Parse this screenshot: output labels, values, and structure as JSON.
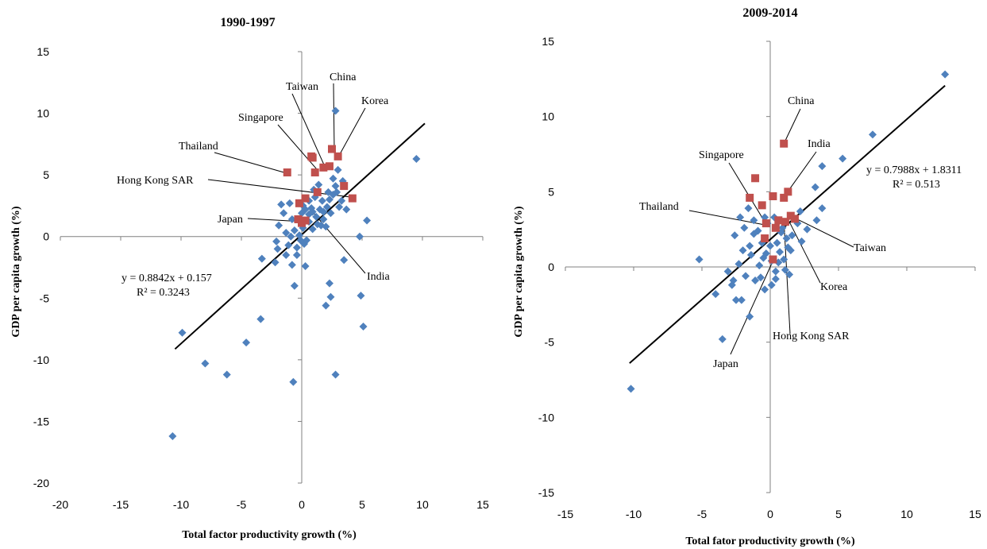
{
  "colors": {
    "background": "#ffffff",
    "other_markers": "#4f81bd",
    "asia_markers": "#c0504d",
    "axis": "#808080",
    "trendline": "#000000"
  },
  "chart_data": [
    {
      "type": "scatter",
      "title": "1990-1997",
      "xlabel": "Total factor productivity growth (%)",
      "ylabel": "GDP per capita growth (%)",
      "xlim": [
        -20,
        15
      ],
      "ylim": [
        -20,
        15
      ],
      "xticks": [
        -20,
        -15,
        -10,
        -5,
        0,
        5,
        10,
        15
      ],
      "yticks": [
        -20,
        -15,
        -10,
        -5,
        0,
        5,
        10,
        15
      ],
      "x_tick_labels": [
        "-20",
        "-15",
        "-10",
        "-5",
        "0",
        "5",
        "10",
        "15"
      ],
      "y_tick_labels": [
        "-20",
        "-15",
        "-10",
        "-5",
        "0",
        "5",
        "10",
        "15"
      ],
      "trendline": {
        "slope": 0.8842,
        "intercept": 0.157,
        "x_range": [
          -10.5,
          10.2
        ]
      },
      "equation_text": "y = 0.8842x + 0.157",
      "r2_text": "R² = 0.3243",
      "series": [
        {
          "marker": "diamond",
          "color": "#4f81bd",
          "points": [
            [
              9.5,
              6.3
            ],
            [
              2.8,
              10.2
            ],
            [
              5.4,
              1.3
            ],
            [
              4.8,
              0.0
            ],
            [
              3.5,
              -1.9
            ],
            [
              2.3,
              -3.8
            ],
            [
              2.4,
              -4.9
            ],
            [
              4.9,
              -4.8
            ],
            [
              5.1,
              -7.3
            ],
            [
              2.0,
              -5.6
            ],
            [
              2.8,
              -11.2
            ],
            [
              -0.7,
              -11.8
            ],
            [
              -4.6,
              -8.6
            ],
            [
              -3.4,
              -6.7
            ],
            [
              -6.2,
              -11.2
            ],
            [
              -8.0,
              -10.3
            ],
            [
              -9.9,
              -7.8
            ],
            [
              -10.7,
              -16.2
            ],
            [
              -3.3,
              -1.8
            ],
            [
              -2.2,
              -2.1
            ],
            [
              -2.0,
              -1.0
            ],
            [
              -2.1,
              -0.4
            ],
            [
              -1.3,
              -1.5
            ],
            [
              -0.8,
              -2.3
            ],
            [
              -0.6,
              -4.0
            ],
            [
              0.3,
              -2.4
            ],
            [
              -0.4,
              -1.5
            ],
            [
              -0.9,
              0.0
            ],
            [
              -1.7,
              2.6
            ],
            [
              -1.9,
              0.9
            ],
            [
              -1.3,
              0.3
            ],
            [
              -0.6,
              0.5
            ],
            [
              -1.0,
              2.7
            ],
            [
              0.1,
              2.5
            ],
            [
              0.3,
              2.2
            ],
            [
              0.6,
              1.8
            ],
            [
              0.9,
              2.0
            ],
            [
              1.2,
              1.6
            ],
            [
              1.5,
              2.2
            ],
            [
              1.8,
              2.0
            ],
            [
              2.1,
              2.4
            ],
            [
              2.3,
              3.0
            ],
            [
              2.6,
              3.4
            ],
            [
              2.9,
              3.6
            ],
            [
              3.1,
              2.4
            ],
            [
              3.3,
              2.9
            ],
            [
              3.7,
              2.2
            ],
            [
              0.6,
              1.2
            ],
            [
              0.9,
              0.6
            ],
            [
              1.3,
              1.0
            ],
            [
              1.6,
              0.9
            ],
            [
              2.0,
              0.8
            ],
            [
              -0.2,
              0.1
            ],
            [
              0.2,
              -0.6
            ],
            [
              0.4,
              -0.3
            ],
            [
              -0.4,
              -0.9
            ],
            [
              1.0,
              3.8
            ],
            [
              1.4,
              4.2
            ],
            [
              2.6,
              4.7
            ],
            [
              3.0,
              5.4
            ],
            [
              3.4,
              4.5
            ],
            [
              0.0,
              1.9
            ],
            [
              0.6,
              2.9
            ],
            [
              1.1,
              3.2
            ],
            [
              -0.2,
              1.4
            ],
            [
              0.8,
              2.3
            ],
            [
              1.7,
              2.9
            ],
            [
              2.2,
              3.6
            ],
            [
              2.8,
              4.1
            ],
            [
              -1.5,
              1.9
            ],
            [
              -0.8,
              1.4
            ],
            [
              0.1,
              0.7
            ],
            [
              1.8,
              1.4
            ],
            [
              2.4,
              1.9
            ],
            [
              -0.1,
              -0.3
            ],
            [
              -1.1,
              -0.7
            ]
          ]
        },
        {
          "marker": "square",
          "color": "#c0504d",
          "points": [
            [
              -1.2,
              5.2
            ],
            [
              0.9,
              6.4
            ],
            [
              1.1,
              5.2
            ],
            [
              1.8,
              5.6
            ],
            [
              2.3,
              5.7
            ],
            [
              2.5,
              7.1
            ],
            [
              3.0,
              6.5
            ],
            [
              3.5,
              4.1
            ],
            [
              4.2,
              3.1
            ],
            [
              1.3,
              3.6
            ],
            [
              0.3,
              3.1
            ],
            [
              -0.2,
              2.7
            ],
            [
              -0.3,
              1.4
            ],
            [
              0.0,
              1.1
            ],
            [
              0.3,
              1.3
            ],
            [
              0.8,
              6.5
            ]
          ]
        }
      ],
      "annotations": [
        {
          "text": "China",
          "x": 2.7,
          "y": 6.8
        },
        {
          "text": "Taiwan",
          "x": 1.9,
          "y": 5.7
        },
        {
          "text": "Korea",
          "x": 3.0,
          "y": 6.4
        },
        {
          "text": "Singapore",
          "x": 1.3,
          "y": 5.4
        },
        {
          "text": "Thailand",
          "x": -1.1,
          "y": 5.1
        },
        {
          "text": "Hong Kong SAR",
          "x": 4.1,
          "y": 3.2
        },
        {
          "text": "Japan",
          "x": 0.3,
          "y": 1.2
        },
        {
          "text": "India",
          "x": 0.9,
          "y": 2.0
        }
      ]
    },
    {
      "type": "scatter",
      "title": "2009-2014",
      "xlabel": "Total fator productivity growth (%)",
      "ylabel": "GDP per capita growth (%)",
      "xlim": [
        -15,
        15
      ],
      "ylim": [
        -15,
        15
      ],
      "xticks": [
        -15,
        -10,
        -5,
        0,
        5,
        10,
        15
      ],
      "yticks": [
        -15,
        -10,
        -5,
        0,
        5,
        10,
        15
      ],
      "x_tick_labels": [
        "-15",
        "-10",
        "-5",
        "0",
        "5",
        "10",
        "15"
      ],
      "y_tick_labels": [
        "-15",
        "-10",
        "-5",
        "0",
        "5",
        "10",
        "15"
      ],
      "trendline": {
        "slope": 0.7988,
        "intercept": 1.8311,
        "x_range": [
          -10.3,
          12.8
        ]
      },
      "equation_text": "y = 0.7988x + 1.8311",
      "r2_text": "R² = 0.513",
      "series": [
        {
          "marker": "diamond",
          "color": "#4f81bd",
          "points": [
            [
              12.8,
              12.8
            ],
            [
              7.5,
              8.8
            ],
            [
              5.3,
              7.2
            ],
            [
              3.8,
              6.7
            ],
            [
              3.3,
              5.3
            ],
            [
              3.8,
              3.9
            ],
            [
              3.4,
              3.1
            ],
            [
              2.7,
              2.5
            ],
            [
              2.2,
              3.7
            ],
            [
              -10.2,
              -8.1
            ],
            [
              -5.2,
              0.5
            ],
            [
              -4.0,
              -1.8
            ],
            [
              -3.5,
              -4.8
            ],
            [
              -3.1,
              -0.3
            ],
            [
              -2.8,
              -1.2
            ],
            [
              -2.5,
              -2.2
            ],
            [
              -2.1,
              -2.2
            ],
            [
              -1.5,
              -3.3
            ],
            [
              -2.6,
              2.1
            ],
            [
              -2.2,
              3.3
            ],
            [
              -1.9,
              2.6
            ],
            [
              -1.6,
              3.9
            ],
            [
              -1.2,
              3.1
            ],
            [
              -0.9,
              2.4
            ],
            [
              -0.6,
              1.6
            ],
            [
              -0.3,
              0.9
            ],
            [
              0.1,
              0.4
            ],
            [
              0.4,
              -0.3
            ],
            [
              0.7,
              1.0
            ],
            [
              1.0,
              0.5
            ],
            [
              1.3,
              1.3
            ],
            [
              1.6,
              2.1
            ],
            [
              2.0,
              2.9
            ],
            [
              2.3,
              1.7
            ],
            [
              -0.4,
              -1.5
            ],
            [
              0.1,
              -1.2
            ],
            [
              0.4,
              -0.8
            ],
            [
              -1.1,
              -0.9
            ],
            [
              -1.8,
              -0.6
            ],
            [
              -2.3,
              0.2
            ],
            [
              -1.4,
              0.8
            ],
            [
              -0.8,
              0.1
            ],
            [
              -0.2,
              2.9
            ],
            [
              0.3,
              3.3
            ],
            [
              0.8,
              2.3
            ],
            [
              1.2,
              1.9
            ],
            [
              1.5,
              1.1
            ],
            [
              -1.5,
              1.4
            ],
            [
              -2.0,
              1.1
            ],
            [
              -2.7,
              -0.9
            ],
            [
              -0.7,
              -0.7
            ],
            [
              0.6,
              0.3
            ],
            [
              1.1,
              -0.2
            ],
            [
              1.4,
              -0.5
            ],
            [
              -0.5,
              0.6
            ],
            [
              0.0,
              1.4
            ],
            [
              -1.2,
              2.2
            ],
            [
              -0.4,
              3.3
            ],
            [
              0.5,
              1.6
            ],
            [
              0.9,
              2.6
            ]
          ]
        },
        {
          "marker": "square",
          "color": "#c0504d",
          "points": [
            [
              1.0,
              8.2
            ],
            [
              -1.1,
              5.9
            ],
            [
              -1.5,
              4.6
            ],
            [
              -0.6,
              4.1
            ],
            [
              0.2,
              4.7
            ],
            [
              1.0,
              4.6
            ],
            [
              1.3,
              5.0
            ],
            [
              -0.3,
              2.9
            ],
            [
              0.6,
              3.1
            ],
            [
              1.5,
              3.4
            ],
            [
              1.8,
              3.2
            ],
            [
              -0.4,
              1.9
            ],
            [
              0.2,
              0.5
            ],
            [
              0.4,
              2.6
            ],
            [
              1.1,
              3.0
            ]
          ]
        }
      ],
      "annotations": [
        {
          "text": "China",
          "x": 1.0,
          "y": 8.2
        },
        {
          "text": "India",
          "x": 1.2,
          "y": 4.9
        },
        {
          "text": "Singapore",
          "x": -0.4,
          "y": 3.0
        },
        {
          "text": "Thailand",
          "x": -0.4,
          "y": 2.8
        },
        {
          "text": "Taiwan",
          "x": 1.7,
          "y": 3.3
        },
        {
          "text": "Korea",
          "x": 1.4,
          "y": 3.0
        },
        {
          "text": "Hong Kong SAR",
          "x": 1.0,
          "y": 3.1
        },
        {
          "text": "Japan",
          "x": 0.3,
          "y": 0.6
        }
      ]
    }
  ]
}
